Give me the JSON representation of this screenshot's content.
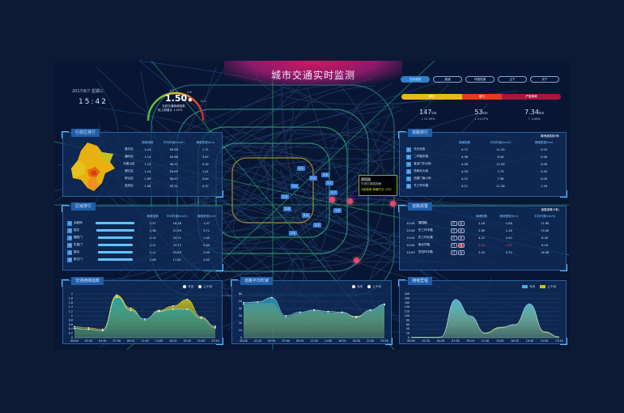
{
  "header": {
    "title": "城市交通实时监测",
    "date": "2017/6/7 星期三",
    "time": "15:42"
  },
  "gauge": {
    "value": "1.50",
    "label": "当前交通拥堵指数",
    "compare": "较上周增长 1.50%",
    "ticks": [
      "1.2",
      "1.6",
      "2.0"
    ],
    "level": 0.75
  },
  "road_tabs": [
    {
      "label": "全部道路",
      "active": true
    },
    {
      "label": "高速"
    },
    {
      "label": "环路快速"
    },
    {
      "label": "主干"
    },
    {
      "label": "次干"
    }
  ],
  "status_bar": {
    "segments": [
      {
        "label": "畅行",
        "color": "#e8b81c",
        "share": 0.38
      },
      {
        "label": "缓行",
        "color": "#e63a1e",
        "share": 0.25
      },
      {
        "label": "严重拥堵",
        "color": "#a8173a",
        "share": 0.37
      }
    ],
    "stats": [
      {
        "value": "147",
        "unit": "km",
        "change": "↓ 21.09%"
      },
      {
        "value": "53",
        "unit": "km",
        "change": "↓ 21.07%"
      },
      {
        "value": "7.34",
        "unit": "km",
        "change": "↑ 4.08%"
      }
    ]
  },
  "district_panel": {
    "title": "行政区排行",
    "headers": [
      "",
      "拥堵指数",
      "平均时速(km/h)",
      "拥堵里程(km)"
    ],
    "rows": [
      [
        "昌平区",
        "1.14",
        "50.69",
        "1.71"
      ],
      [
        "通州区",
        "1.14",
        "50.66",
        "3.07"
      ],
      [
        "石景山区",
        "1.14",
        "46.22",
        "0.32"
      ],
      [
        "顺义区",
        "1.14",
        "54.69",
        "1.41"
      ],
      [
        "房山区",
        "1.09",
        "58.57",
        "0.80"
      ],
      [
        "延庆区",
        "1.08",
        "50.31",
        "0.37"
      ]
    ]
  },
  "area_panel": {
    "title": "区域排行",
    "headers": [
      "",
      "",
      "",
      "拥堵指数",
      "平均时速(km/h)",
      "拥堵里程(km)"
    ],
    "rows": [
      [
        "1",
        "北新桥",
        "2.37",
        "16.28",
        "1.07",
        1.0
      ],
      [
        "2",
        "双井",
        "2.36",
        "21.50",
        "3.71",
        0.99
      ],
      [
        "3",
        "德胜门",
        "2.12",
        "23.71",
        "1.40",
        0.9
      ],
      [
        "4",
        "东直门",
        "2.11",
        "23.75",
        "2.44",
        0.9
      ],
      [
        "5",
        "望京",
        "2.11",
        "23.83",
        "2.09",
        0.9
      ],
      [
        "6",
        "崇文门",
        "2.08",
        "17.82",
        "2.42",
        0.88
      ]
    ]
  },
  "road_panel": {
    "title": "道路排行",
    "extra": "拥堵道路前6条",
    "headers": [
      "",
      "",
      "拥堵指数",
      "平均时速(km/h)",
      "拥堵里程(km)"
    ],
    "rows": [
      [
        "1",
        "东长安街",
        "4.72",
        "11.20",
        "0.25"
      ],
      [
        "2",
        "二环路东路",
        "4.38",
        "8.34",
        "0.48"
      ],
      [
        "3",
        "宣武门东大街",
        "4.36",
        "12.20",
        "0.08"
      ],
      [
        "4",
        "西单北大街",
        "4.30",
        "7.73",
        "0.44"
      ],
      [
        "5",
        "西直门南小街",
        "4.22",
        "7.36",
        "0.00"
      ],
      [
        "6",
        "东三环中路",
        "4.21",
        "11.36",
        "1.16"
      ]
    ]
  },
  "alarm_panel": {
    "title": "道路报警",
    "extra": "道路报警(5条)",
    "headers": [
      "",
      "",
      "",
      "拥堵指数",
      "拥堵里程(km)",
      "平均时速(km/h)"
    ],
    "rows": [
      [
        "15:04",
        "望园路",
        "环",
        "报",
        "2.16",
        "1.08",
        "11.60",
        false
      ],
      [
        "15:04",
        "东三环中路",
        "环",
        "报",
        "2.69",
        "1.18",
        "13.00",
        false
      ],
      [
        "15:04",
        "东三环北路",
        "环",
        "报",
        "4.21",
        "2.00",
        "6.40",
        false
      ],
      [
        "15:04",
        "南北环路",
        "环",
        "报",
        "4.48",
        "4.30",
        "6.16",
        true
      ],
      [
        "15:03",
        "东四环中路",
        "环",
        "报",
        "2.43",
        "3.70",
        "16.08",
        false
      ]
    ]
  },
  "map": {
    "tooltip": {
      "name": "建国路",
      "sub": "东城中道路拥堵",
      "warn": "3级拥堵 拥堵时长 15分"
    },
    "markers": [
      "2.1",
      "2.5",
      "1.8",
      "3.2",
      "2.3",
      "1.9",
      "2.0",
      "2.7",
      "1.6",
      "2.2",
      "2.4",
      "1.7"
    ]
  },
  "chart_data": [
    {
      "type": "area",
      "title": "交通拥堵指数",
      "ylim": [
        0,
        2
      ],
      "yticks": [
        "0",
        "0.2",
        "0.4",
        "0.6",
        "0.8",
        "1",
        "1.2",
        "1.4",
        "1.6",
        "1.8",
        "2"
      ],
      "categories": [
        "00:00",
        "02:20",
        "04:40",
        "07:00",
        "09:20",
        "11:40",
        "14:00",
        "16:20",
        "18:40",
        "21:00",
        "23:20"
      ],
      "series": [
        {
          "name": "今天",
          "color": "#1fa0a8",
          "values": [
            0.42,
            0.38,
            0.32,
            1.85,
            1.25,
            0.85,
            1.2,
            1.3,
            1.3,
            0.9,
            0.45
          ]
        },
        {
          "name": "上个月",
          "color": "#c8c21c",
          "values": [
            0.5,
            0.45,
            0.38,
            1.95,
            1.35,
            0.8,
            1.25,
            1.45,
            1.75,
            0.95,
            0.52
          ]
        }
      ]
    },
    {
      "type": "area",
      "title": "道路平均时速",
      "ylim": [
        0,
        60
      ],
      "yticks": [
        "0",
        "10",
        "20",
        "30",
        "40",
        "50",
        "60"
      ],
      "categories": [
        "00:00",
        "02:20",
        "04:40",
        "07:00",
        "09:20",
        "11:40",
        "14:00",
        "16:20",
        "18:40",
        "21:00",
        "23:20"
      ],
      "series": [
        {
          "name": "今天",
          "color": "#2a8fb0",
          "values": [
            48,
            49,
            55,
            30,
            35,
            38,
            36,
            35,
            28,
            38,
            46
          ]
        },
        {
          "name": "上个月",
          "color": "#c8c21c",
          "values": [
            46,
            47,
            47,
            28,
            33,
            37,
            34,
            34,
            29,
            37,
            45
          ]
        }
      ]
    },
    {
      "type": "area",
      "title": "拥堵里程",
      "ylim": [
        0,
        200
      ],
      "yticks": [
        "0",
        "20",
        "40",
        "60",
        "80",
        "100",
        "120",
        "140",
        "160",
        "180",
        "200"
      ],
      "categories": [
        "00:00",
        "02:20",
        "04:40",
        "07:00",
        "09:20",
        "11:40",
        "14:00",
        "16:20",
        "18:40",
        "21:00",
        "23:20"
      ],
      "series": [
        {
          "name": "今天",
          "color": "#4aaed8",
          "values": [
            2,
            2,
            3,
            175,
            100,
            20,
            45,
            60,
            155,
            25,
            3
          ]
        },
        {
          "name": "上个月",
          "color": "#c8c21c",
          "values": [
            2,
            2,
            3,
            170,
            95,
            22,
            48,
            58,
            150,
            28,
            4
          ]
        }
      ]
    }
  ]
}
